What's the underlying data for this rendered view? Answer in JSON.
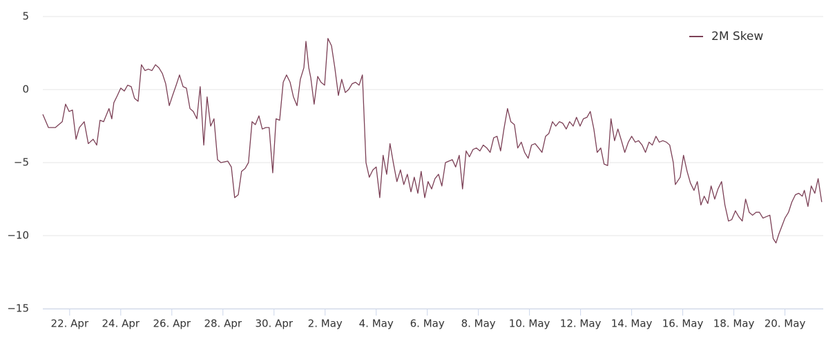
{
  "chart_data": {
    "type": "line",
    "x": [
      20.95,
      21.17,
      21.44,
      21.71,
      21.84,
      21.98,
      22.11,
      22.25,
      22.38,
      22.57,
      22.73,
      22.92,
      23.06,
      23.19,
      23.33,
      23.54,
      23.65,
      23.73,
      23.87,
      24.0,
      24.14,
      24.27,
      24.41,
      24.54,
      24.68,
      24.81,
      24.95,
      25.08,
      25.22,
      25.36,
      25.49,
      25.63,
      25.76,
      25.9,
      26.03,
      26.17,
      26.3,
      26.44,
      26.57,
      26.71,
      26.84,
      26.98,
      27.11,
      27.25,
      27.38,
      27.52,
      27.65,
      27.79,
      27.92,
      28.19,
      28.33,
      28.46,
      28.6,
      28.73,
      28.87,
      29.0,
      29.14,
      29.27,
      29.41,
      29.54,
      29.68,
      29.81,
      29.95,
      30.08,
      30.22,
      30.36,
      30.49,
      30.63,
      30.76,
      30.9,
      31.03,
      31.17,
      31.25,
      31.36,
      31.44,
      31.57,
      31.71,
      31.84,
      31.98,
      32.11,
      32.25,
      32.38,
      32.52,
      32.65,
      32.79,
      32.92,
      33.06,
      33.19,
      33.33,
      33.46,
      33.6,
      33.73,
      33.87,
      34.0,
      34.14,
      34.27,
      34.41,
      34.54,
      34.68,
      34.81,
      34.95,
      35.08,
      35.22,
      35.36,
      35.49,
      35.63,
      35.76,
      35.9,
      36.03,
      36.17,
      36.3,
      36.44,
      36.57,
      36.71,
      36.84,
      36.98,
      37.11,
      37.25,
      37.38,
      37.52,
      37.65,
      37.79,
      37.92,
      38.06,
      38.19,
      38.33,
      38.46,
      38.6,
      38.73,
      38.87,
      39.0,
      39.14,
      39.27,
      39.41,
      39.54,
      39.68,
      39.81,
      39.95,
      40.08,
      40.22,
      40.36,
      40.49,
      40.63,
      40.76,
      40.9,
      41.03,
      41.17,
      41.3,
      41.44,
      41.57,
      41.71,
      41.84,
      41.98,
      42.11,
      42.25,
      42.38,
      42.52,
      42.65,
      42.79,
      42.92,
      43.06,
      43.19,
      43.33,
      43.46,
      43.6,
      43.73,
      43.87,
      44.0,
      44.14,
      44.27,
      44.41,
      44.54,
      44.68,
      44.81,
      44.95,
      45.08,
      45.22,
      45.36,
      45.49,
      45.63,
      45.71,
      45.9,
      46.03,
      46.17,
      46.3,
      46.44,
      46.57,
      46.71,
      46.84,
      46.98,
      47.11,
      47.25,
      47.38,
      47.52,
      47.65,
      47.79,
      47.92,
      48.06,
      48.19,
      48.33,
      48.46,
      48.6,
      48.73,
      48.87,
      49.0,
      49.14,
      49.27,
      49.41,
      49.54,
      49.65,
      49.76,
      49.87,
      50.0,
      50.14,
      50.27,
      50.41,
      50.54,
      50.68,
      50.76,
      50.9,
      51.03,
      51.17,
      51.3,
      51.44
    ],
    "series": [
      {
        "name": "2M Skew",
        "color": "#7b3f55",
        "values": [
          -1.7,
          -2.6,
          -2.6,
          -2.2,
          -1.0,
          -1.5,
          -1.4,
          -3.4,
          -2.6,
          -2.2,
          -3.7,
          -3.4,
          -3.8,
          -2.1,
          -2.2,
          -1.3,
          -2.0,
          -0.9,
          -0.4,
          0.1,
          -0.1,
          0.3,
          0.2,
          -0.6,
          -0.8,
          1.7,
          1.3,
          1.4,
          1.3,
          1.7,
          1.5,
          1.1,
          0.4,
          -1.1,
          -0.4,
          0.3,
          1.0,
          0.2,
          0.1,
          -1.3,
          -1.5,
          -2.0,
          0.2,
          -3.8,
          -0.5,
          -2.5,
          -2.0,
          -4.8,
          -5.0,
          -4.9,
          -5.3,
          -7.4,
          -7.2,
          -5.6,
          -5.4,
          -5.0,
          -2.2,
          -2.4,
          -1.8,
          -2.7,
          -2.6,
          -2.6,
          -5.7,
          -2.0,
          -2.1,
          0.5,
          1.0,
          0.5,
          -0.5,
          -1.1,
          0.7,
          1.5,
          3.3,
          1.5,
          0.8,
          -1.0,
          0.9,
          0.5,
          0.3,
          3.5,
          3.0,
          1.5,
          -0.4,
          0.7,
          -0.2,
          0.0,
          0.4,
          0.5,
          0.3,
          1.0,
          -5.0,
          -6.0,
          -5.5,
          -5.3,
          -7.4,
          -4.5,
          -5.8,
          -3.7,
          -5.1,
          -6.3,
          -5.5,
          -6.5,
          -5.8,
          -7.0,
          -6.0,
          -7.1,
          -5.6,
          -7.4,
          -6.3,
          -6.8,
          -6.1,
          -5.8,
          -6.6,
          -5.0,
          -4.9,
          -4.8,
          -5.3,
          -4.5,
          -6.8,
          -4.2,
          -4.6,
          -4.1,
          -4.0,
          -4.2,
          -3.8,
          -4.0,
          -4.3,
          -3.3,
          -3.2,
          -4.2,
          -2.7,
          -1.3,
          -2.2,
          -2.4,
          -4.0,
          -3.6,
          -4.3,
          -4.7,
          -3.8,
          -3.7,
          -4.0,
          -4.3,
          -3.2,
          -3.0,
          -2.2,
          -2.5,
          -2.2,
          -2.3,
          -2.7,
          -2.2,
          -2.5,
          -1.9,
          -2.5,
          -2.0,
          -1.9,
          -1.5,
          -2.7,
          -4.3,
          -4.0,
          -5.1,
          -5.2,
          -2.0,
          -3.5,
          -2.7,
          -3.5,
          -4.3,
          -3.6,
          -3.2,
          -3.6,
          -3.5,
          -3.8,
          -4.3,
          -3.6,
          -3.8,
          -3.2,
          -3.6,
          -3.5,
          -3.6,
          -3.8,
          -5.0,
          -6.5,
          -6.0,
          -4.5,
          -5.6,
          -6.4,
          -6.9,
          -6.3,
          -7.9,
          -7.3,
          -7.8,
          -6.6,
          -7.5,
          -6.8,
          -6.3,
          -7.9,
          -9.0,
          -8.9,
          -8.3,
          -8.7,
          -9.0,
          -7.5,
          -8.4,
          -8.6,
          -8.4,
          -8.4,
          -8.8,
          -8.7,
          -8.6,
          -10.2,
          -10.5,
          -9.9,
          -9.4,
          -8.8,
          -8.4,
          -7.7,
          -7.2,
          -7.1,
          -7.3,
          -6.9,
          -8.0,
          -6.6,
          -7.1,
          -6.1,
          -7.7
        ]
      }
    ],
    "xlim": [
      20.95,
      51.5
    ],
    "xticks": [
      {
        "value": 22,
        "label": "22. Apr"
      },
      {
        "value": 24,
        "label": "24. Apr"
      },
      {
        "value": 26,
        "label": "26. Apr"
      },
      {
        "value": 28,
        "label": "28. Apr"
      },
      {
        "value": 30,
        "label": "30. Apr"
      },
      {
        "value": 32,
        "label": "2. May"
      },
      {
        "value": 34,
        "label": "4. May"
      },
      {
        "value": 36,
        "label": "6. May"
      },
      {
        "value": 38,
        "label": "8. May"
      },
      {
        "value": 40,
        "label": "10. May"
      },
      {
        "value": 42,
        "label": "12. May"
      },
      {
        "value": 44,
        "label": "14. May"
      },
      {
        "value": 46,
        "label": "16. May"
      },
      {
        "value": 48,
        "label": "18. May"
      },
      {
        "value": 50,
        "label": "20. May"
      }
    ],
    "ylim": [
      -15,
      5
    ],
    "yticks": [
      {
        "value": -15,
        "label": "−15"
      },
      {
        "value": -10,
        "label": "−10"
      },
      {
        "value": -5,
        "label": "−5"
      },
      0,
      5
    ],
    "grid": true,
    "legend": "top-right"
  }
}
